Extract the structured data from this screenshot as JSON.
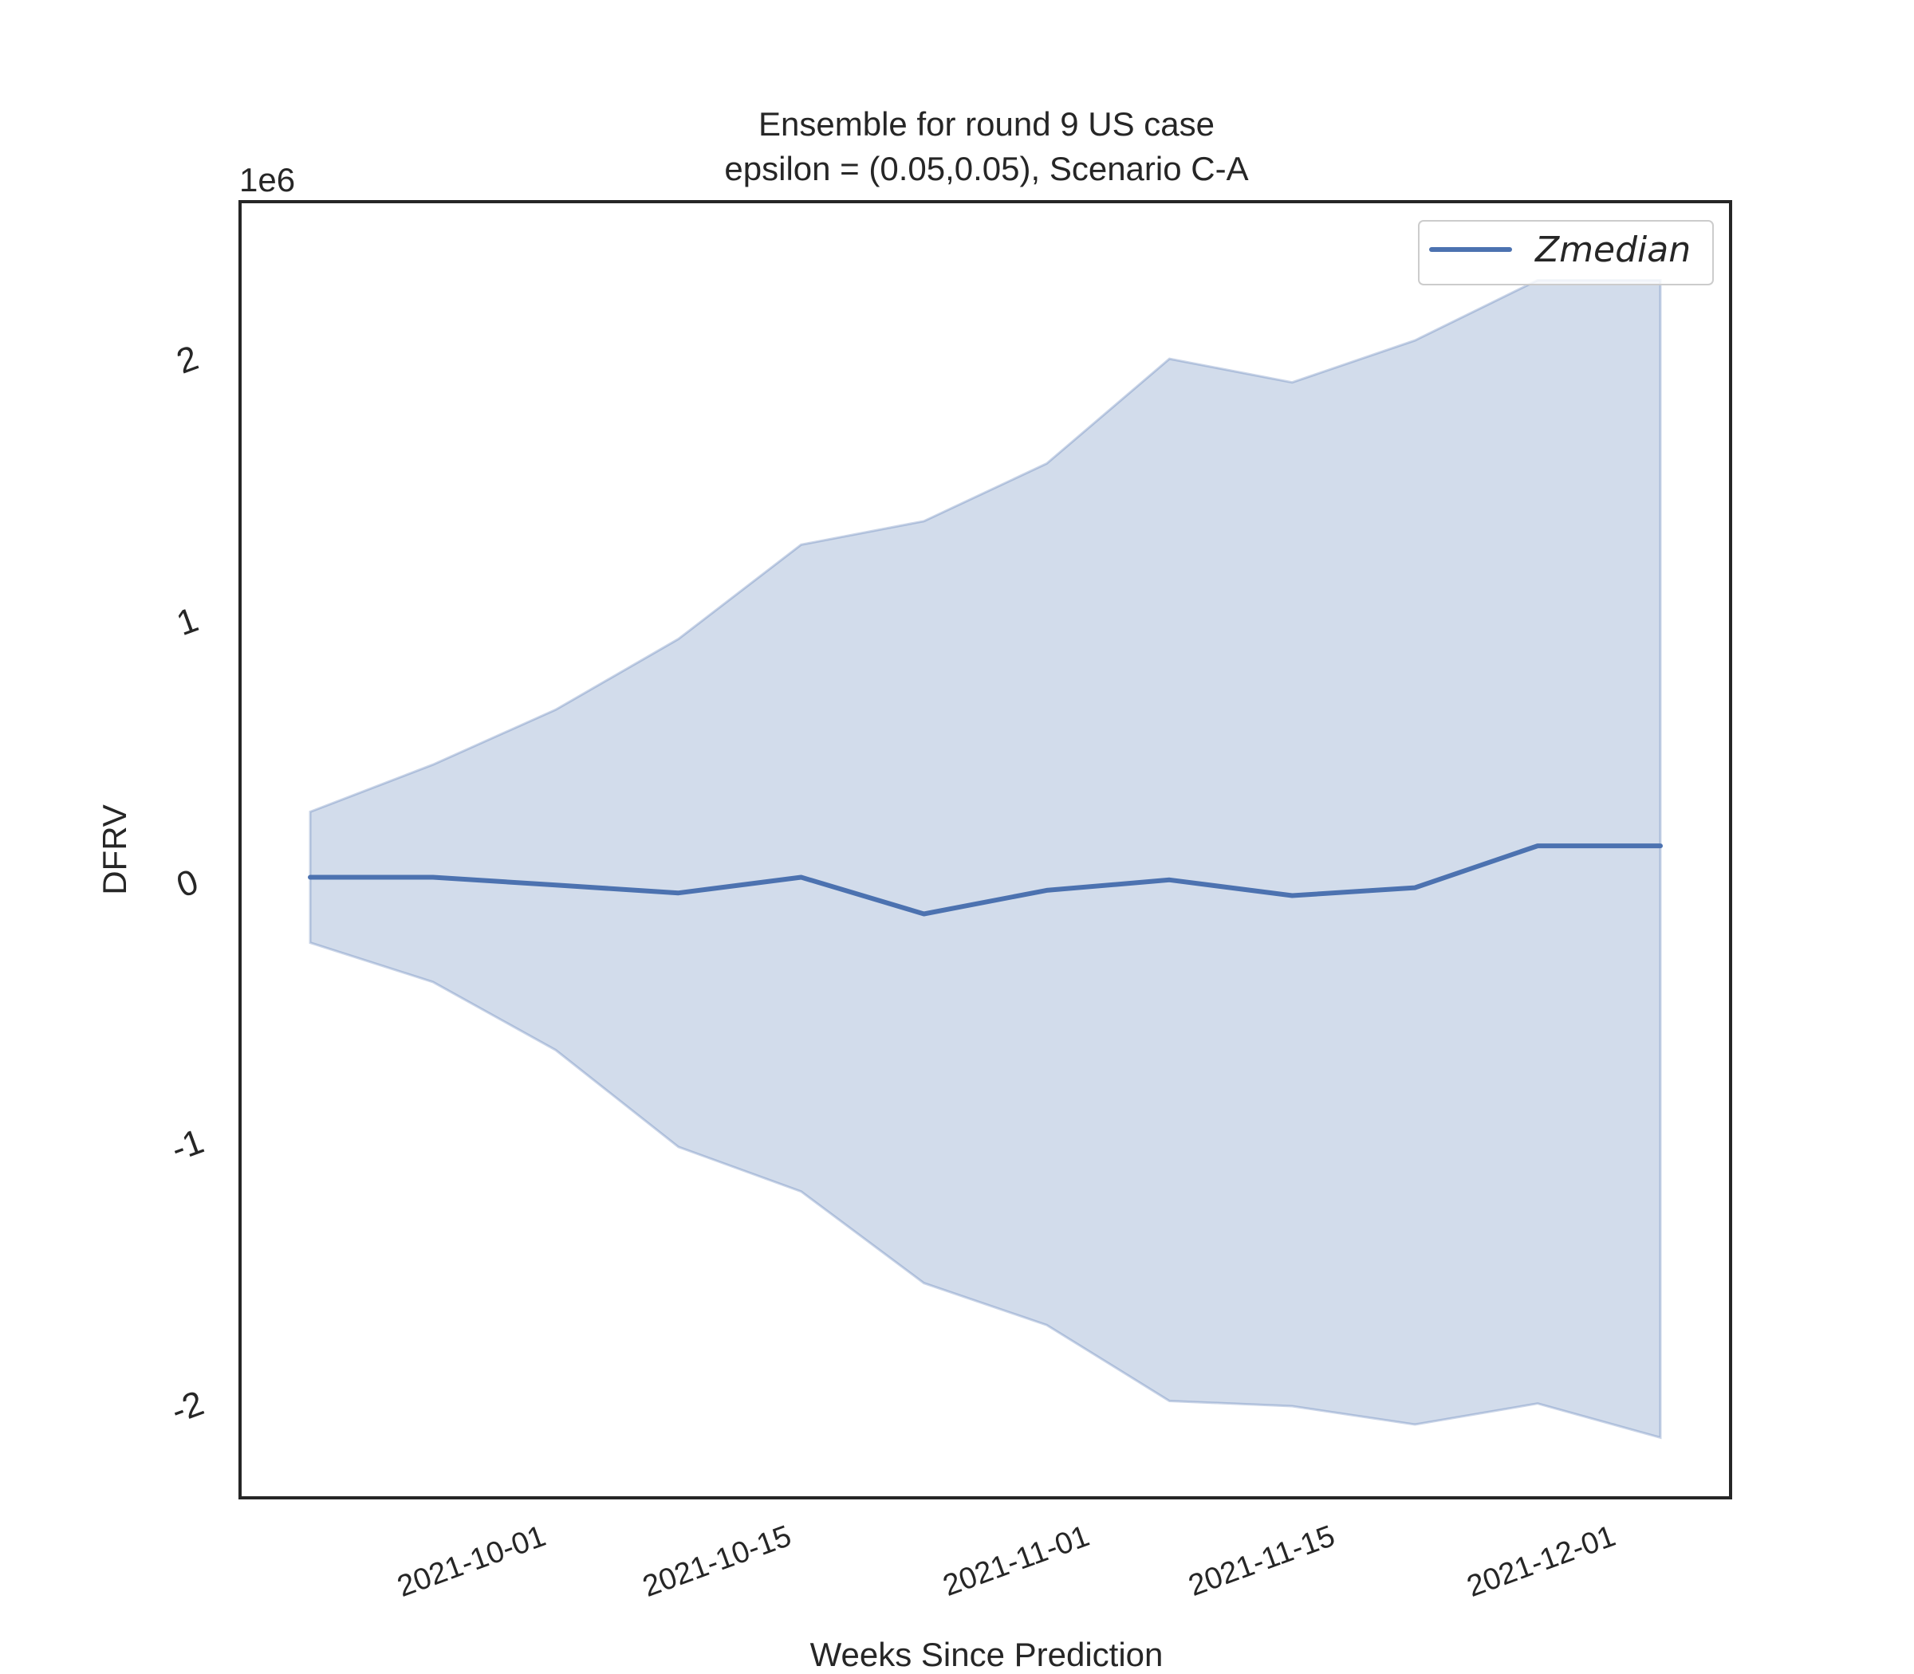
{
  "chart_data": {
    "type": "line",
    "title": "Ensemble for round 9 US  case",
    "subtitle": "epsilon = (0.05,0.05), Scenario C-A",
    "xlabel": "Weeks Since Prediction",
    "ylabel": "DFRV",
    "y_offset_label": "1e6",
    "y_multiplier": 1000000,
    "x_dates": [
      "2021-09-18",
      "2021-09-25",
      "2021-10-02",
      "2021-10-09",
      "2021-10-16",
      "2021-10-23",
      "2021-10-30",
      "2021-11-06",
      "2021-11-13",
      "2021-11-20",
      "2021-11-27",
      "2021-12-04"
    ],
    "x_tick_labels": [
      "2021-10-01",
      "2021-10-15",
      "2021-11-01",
      "2021-11-15",
      "2021-12-01"
    ],
    "y_ticks": [
      -2,
      -1,
      0,
      1,
      2
    ],
    "y_tick_labels": [
      "-2",
      "-1",
      "0",
      "1",
      "2"
    ],
    "ylim": [
      -2.35,
      2.6
    ],
    "xlim": [
      "2021-09-14",
      "2021-12-08"
    ],
    "series": [
      {
        "name": "Zmedian",
        "color": "#4c72b0",
        "values": [
          0.02,
          0.02,
          -0.01,
          -0.04,
          0.02,
          -0.12,
          -0.03,
          0.01,
          -0.05,
          -0.02,
          0.14,
          0.14
        ]
      }
    ],
    "band": {
      "color": "#4c72b0",
      "opacity": 0.25,
      "upper": [
        0.27,
        0.45,
        0.66,
        0.93,
        1.29,
        1.38,
        1.6,
        2.0,
        1.91,
        2.07,
        2.3,
        2.3
      ],
      "lower": [
        -0.23,
        -0.38,
        -0.64,
        -1.01,
        -1.18,
        -1.53,
        -1.69,
        -1.98,
        -2.0,
        -2.07,
        -1.99,
        -2.12
      ]
    },
    "legend": {
      "position": "top-right",
      "entries": [
        "Zmedian"
      ]
    },
    "grid": false
  }
}
